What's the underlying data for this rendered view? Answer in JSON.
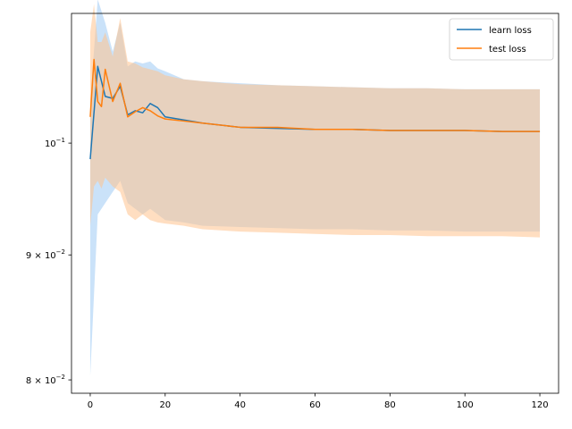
{
  "chart_data": {
    "type": "line",
    "title": "",
    "xlabel": "",
    "ylabel": "",
    "xlim": [
      -5,
      125
    ],
    "ylim": [
      0.079,
      0.113
    ],
    "yscale": "log",
    "grid": false,
    "legend_position": "top-right",
    "x_ticks": [
      {
        "value": 0,
        "label": "0"
      },
      {
        "value": 20,
        "label": "20"
      },
      {
        "value": 40,
        "label": "40"
      },
      {
        "value": 60,
        "label": "60"
      },
      {
        "value": 80,
        "label": "80"
      },
      {
        "value": 100,
        "label": "100"
      },
      {
        "value": 120,
        "label": "120"
      }
    ],
    "y_ticks": [
      {
        "value": 0.08,
        "label": "8 × 10",
        "exp": "−2"
      },
      {
        "value": 0.09,
        "label": "9 × 10",
        "exp": "−2"
      },
      {
        "value": 0.1,
        "label": "10",
        "exp": "−1"
      }
    ],
    "series": [
      {
        "name": "learn loss",
        "color": "#1f77b4",
        "band_color": "#a6cef5",
        "x": [
          0,
          2,
          4,
          6,
          8,
          10,
          12,
          14,
          16,
          18,
          20,
          25,
          30,
          40,
          50,
          60,
          70,
          80,
          90,
          100,
          110,
          120
        ],
        "y": [
          0.0985,
          0.1075,
          0.1045,
          0.1043,
          0.1055,
          0.1027,
          0.1031,
          0.1029,
          0.1038,
          0.1034,
          0.1025,
          0.1022,
          0.1019,
          0.1015,
          0.1014,
          0.1013,
          0.1013,
          0.1012,
          0.1012,
          0.1012,
          0.1011,
          0.1011
        ],
        "lower": [
          0.0803,
          0.0935,
          0.0945,
          0.0955,
          0.0965,
          0.0945,
          0.094,
          0.0935,
          0.094,
          0.0935,
          0.093,
          0.0928,
          0.0925,
          0.0924,
          0.0923,
          0.0922,
          0.0922,
          0.0921,
          0.0921,
          0.092,
          0.092,
          0.092
        ],
        "upper": [
          0.104,
          0.1145,
          0.112,
          0.109,
          0.112,
          0.1075,
          0.108,
          0.1078,
          0.108,
          0.1073,
          0.107,
          0.1062,
          0.106,
          0.1058,
          0.1056,
          0.1055,
          0.1054,
          0.1053,
          0.1053,
          0.1052,
          0.1052,
          0.1052
        ]
      },
      {
        "name": "test loss",
        "color": "#ff7f0e",
        "band_color": "#ffc28e",
        "x": [
          0,
          1,
          2,
          3,
          4,
          6,
          8,
          10,
          12,
          14,
          16,
          18,
          20,
          25,
          30,
          40,
          50,
          60,
          70,
          80,
          90,
          100,
          110,
          120
        ],
        "y": [
          0.1025,
          0.1082,
          0.104,
          0.1035,
          0.1072,
          0.104,
          0.1058,
          0.1025,
          0.103,
          0.1034,
          0.1031,
          0.1026,
          0.1023,
          0.1021,
          0.1019,
          0.1015,
          0.1015,
          0.1013,
          0.1013,
          0.1012,
          0.1012,
          0.1012,
          0.1011,
          0.1011
        ],
        "lower": [
          0.0925,
          0.096,
          0.0965,
          0.0958,
          0.0968,
          0.096,
          0.0955,
          0.0935,
          0.093,
          0.0935,
          0.093,
          0.0928,
          0.0927,
          0.0925,
          0.0922,
          0.092,
          0.0919,
          0.0918,
          0.0917,
          0.0917,
          0.0916,
          0.0916,
          0.0916,
          0.0915
        ],
        "upper": [
          0.111,
          0.114,
          0.11,
          0.11,
          0.111,
          0.1085,
          0.1125,
          0.108,
          0.1078,
          0.1074,
          0.1072,
          0.107,
          0.1066,
          0.1062,
          0.106,
          0.1057,
          0.1056,
          0.1055,
          0.1054,
          0.1053,
          0.1053,
          0.1052,
          0.1052,
          0.1052
        ]
      }
    ]
  }
}
